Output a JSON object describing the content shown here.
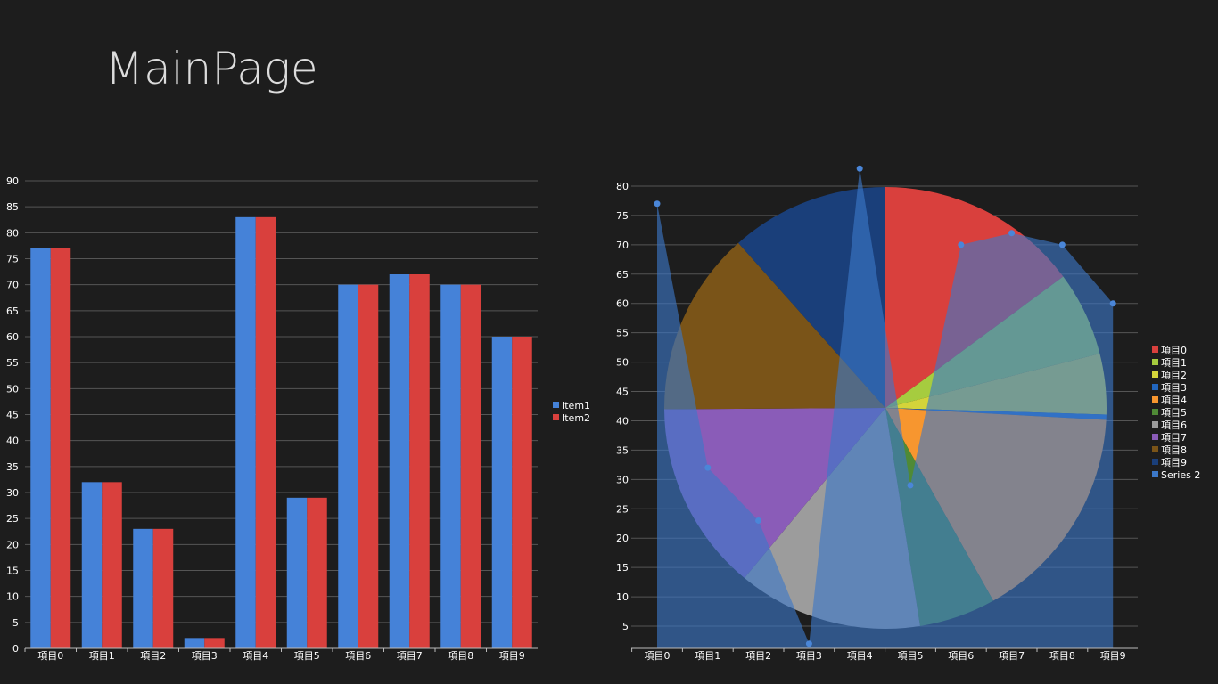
{
  "page": {
    "title": "MainPage"
  },
  "colors": {
    "background": "#1d1d1d",
    "grid": "#555555",
    "item1": "#4582d8",
    "item2": "#d9403d",
    "series2": "#3c78c8"
  },
  "chart_data": [
    {
      "type": "bar",
      "categories": [
        "項目0",
        "項目1",
        "項目2",
        "項目3",
        "項目4",
        "項目5",
        "項目6",
        "項目7",
        "項目8",
        "項目9"
      ],
      "series": [
        {
          "name": "Item1",
          "values": [
            77,
            32,
            23,
            2,
            83,
            29,
            70,
            72,
            70,
            60
          ]
        },
        {
          "name": "Item2",
          "values": [
            77,
            32,
            23,
            2,
            83,
            29,
            70,
            72,
            70,
            60
          ]
        }
      ],
      "ylim": [
        0,
        90
      ],
      "yticks": [
        0,
        5,
        10,
        15,
        20,
        25,
        30,
        35,
        40,
        45,
        50,
        55,
        60,
        65,
        70,
        75,
        80,
        85,
        90
      ],
      "grid": true,
      "legend": "right"
    },
    {
      "type": "pie",
      "categories": [
        "項目0",
        "項目1",
        "項目2",
        "項目3",
        "項目4",
        "項目5",
        "項目6",
        "項目7",
        "項目8",
        "項目9"
      ],
      "values": [
        77,
        32,
        23,
        2,
        83,
        29,
        70,
        72,
        70,
        60
      ],
      "slice_colors": [
        "#d9403d",
        "#a6cc3f",
        "#d4d43a",
        "#2166bf",
        "#f7962f",
        "#4f8a36",
        "#9c9c9c",
        "#8a5cb8",
        "#7a5418",
        "#1a3f7a"
      ],
      "legend": "right"
    },
    {
      "type": "area",
      "name": "Series 2",
      "categories": [
        "項目0",
        "項目1",
        "項目2",
        "項目3",
        "項目4",
        "項目5",
        "項目6",
        "項目7",
        "項目8",
        "項目9"
      ],
      "values": [
        77,
        32,
        23,
        2,
        83,
        29,
        70,
        72,
        70,
        60
      ],
      "yticks": [
        5,
        10,
        15,
        20,
        25,
        30,
        35,
        40,
        45,
        50,
        55,
        60,
        65,
        70,
        75,
        80
      ],
      "ylim": [
        1.2,
        84
      ],
      "grid": true,
      "legend": "right"
    }
  ],
  "legend_right": [
    "項目0",
    "項目1",
    "項目2",
    "項目3",
    "項目4",
    "項目5",
    "項目6",
    "項目7",
    "項目8",
    "項目9",
    "Series 2"
  ]
}
